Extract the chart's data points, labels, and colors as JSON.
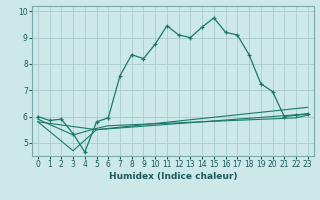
{
  "title": "",
  "xlabel": "Humidex (Indice chaleur)",
  "background_color": "#cce8e8",
  "grid_color": "#aacccc",
  "line_color": "#1a7a6a",
  "xlim": [
    -0.5,
    23.5
  ],
  "ylim": [
    4.5,
    10.2
  ],
  "xticks": [
    0,
    1,
    2,
    3,
    4,
    5,
    6,
    7,
    8,
    9,
    10,
    11,
    12,
    13,
    14,
    15,
    16,
    17,
    18,
    19,
    20,
    21,
    22,
    23
  ],
  "yticks": [
    5,
    6,
    7,
    8,
    9,
    10
  ],
  "main_x": [
    0,
    1,
    2,
    3,
    4,
    5,
    6,
    7,
    8,
    9,
    10,
    11,
    12,
    13,
    14,
    15,
    16,
    17,
    18,
    19,
    20,
    21,
    22,
    23
  ],
  "main_y": [
    6.0,
    5.85,
    5.9,
    5.35,
    4.65,
    5.8,
    5.95,
    7.55,
    8.35,
    8.2,
    8.75,
    9.45,
    9.1,
    9.0,
    9.4,
    9.75,
    9.2,
    9.1,
    8.35,
    7.25,
    6.95,
    6.0,
    6.05,
    6.1
  ],
  "line2_x": [
    0,
    5,
    23
  ],
  "line2_y": [
    5.8,
    5.5,
    6.35
  ],
  "line3_x": [
    0,
    3,
    5,
    23
  ],
  "line3_y": [
    5.8,
    4.7,
    5.5,
    6.1
  ],
  "line4_x": [
    0,
    3,
    5,
    6,
    22,
    23
  ],
  "line4_y": [
    5.9,
    5.3,
    5.55,
    5.65,
    5.95,
    6.05
  ]
}
